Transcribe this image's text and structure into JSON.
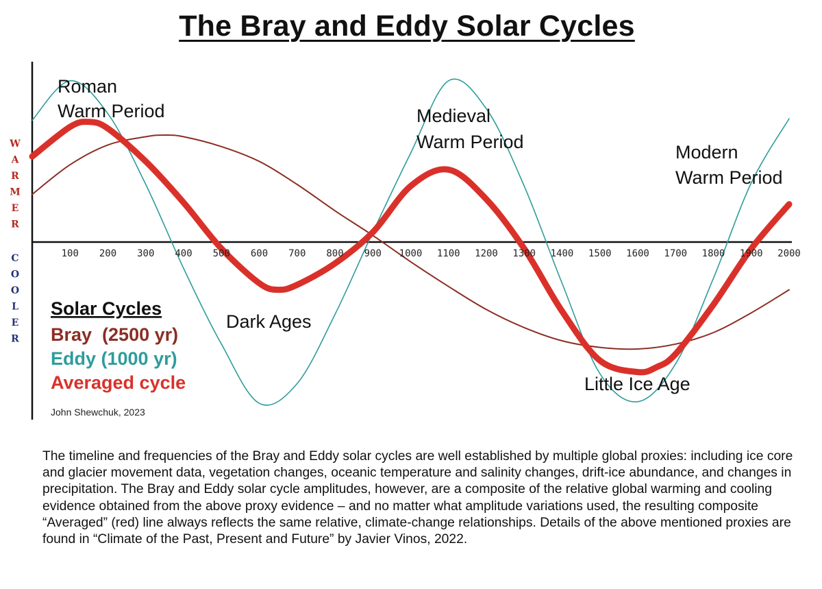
{
  "chart_data": {
    "type": "line",
    "title": "The Bray and Eddy Solar Cycles",
    "xlabel": "",
    "ylabel_warm": "WARMER",
    "ylabel_cool": "COOLER",
    "xlim": [
      0,
      2000
    ],
    "ylim": [
      -1,
      1
    ],
    "x_ticks": [
      "100",
      "200",
      "300",
      "400",
      "500",
      "600",
      "700",
      "800",
      "900",
      "1000",
      "1100",
      "1200",
      "1300",
      "1400",
      "1500",
      "1600",
      "1700",
      "1800",
      "1900",
      "2000"
    ],
    "series": [
      {
        "name": "Bray (2500 yr)",
        "color": "#8b2e24",
        "x": [
          0,
          100,
          200,
          300,
          350,
          400,
          500,
          600,
          700,
          800,
          900,
          1000,
          1100,
          1200,
          1300,
          1400,
          1500,
          1600,
          1700,
          1800,
          1900,
          2000
        ],
        "values": [
          0.29,
          0.47,
          0.59,
          0.64,
          0.65,
          0.64,
          0.58,
          0.49,
          0.35,
          0.19,
          0.04,
          -0.12,
          -0.27,
          -0.41,
          -0.52,
          -0.6,
          -0.64,
          -0.65,
          -0.62,
          -0.55,
          -0.43,
          -0.29
        ]
      },
      {
        "name": "Eddy (1000 yr)",
        "color": "#2f9c9c",
        "x": [
          0,
          100,
          200,
          300,
          400,
          500,
          600,
          700,
          800,
          900,
          1000,
          1100,
          1200,
          1300,
          1400,
          1500,
          1600,
          1700,
          1800,
          1900,
          2000
        ],
        "values": [
          0.74,
          0.98,
          0.78,
          0.35,
          -0.16,
          -0.62,
          -0.98,
          -0.86,
          -0.44,
          0.06,
          0.54,
          0.98,
          0.81,
          0.34,
          -0.25,
          -0.8,
          -0.97,
          -0.74,
          -0.22,
          0.36,
          0.75
        ]
      },
      {
        "name": "Averaged cycle",
        "color": "#d9312a",
        "x": [
          0,
          100,
          150,
          200,
          300,
          400,
          500,
          600,
          650,
          700,
          800,
          900,
          1000,
          1100,
          1200,
          1300,
          1400,
          1500,
          1600,
          1650,
          1700,
          1800,
          1900,
          2000
        ],
        "values": [
          0.52,
          0.7,
          0.73,
          0.69,
          0.49,
          0.24,
          -0.04,
          -0.25,
          -0.29,
          -0.26,
          -0.13,
          0.06,
          0.34,
          0.44,
          0.26,
          -0.04,
          -0.42,
          -0.72,
          -0.79,
          -0.76,
          -0.68,
          -0.38,
          -0.04,
          0.23
        ]
      }
    ],
    "annotations": {
      "roman": [
        "Roman",
        "Warm Period"
      ],
      "medieval": [
        "Medieval",
        "Warm Period"
      ],
      "modern": [
        "Modern",
        "Warm Period"
      ],
      "dark_ages": "Dark Ages",
      "little_ice_age": "Little Ice Age"
    },
    "legend": {
      "title": "Solar Cycles",
      "items": [
        "Bray  (2500 yr)",
        "Eddy (1000 yr)",
        "Averaged cycle"
      ],
      "credit": "John Shewchuk, 2023"
    }
  },
  "caption": "The timeline and frequencies of the Bray and Eddy solar cycles are well established by multiple global proxies: including ice core and glacier movement data, vegetation changes, oceanic temperature and salinity changes, drift-ice abundance, and changes in precipitation.  The Bray and Eddy solar cycle amplitudes, however, are a composite of the relative global warming and cooling evidence obtained from the above proxy evidence – and no matter what amplitude variations used, the resulting composite “Averaged” (red) line always reflects the same relative, climate-change relationships.  Details of the above mentioned proxies are found in “Climate of the Past, Present and Future” by Javier Vinos, 2022."
}
